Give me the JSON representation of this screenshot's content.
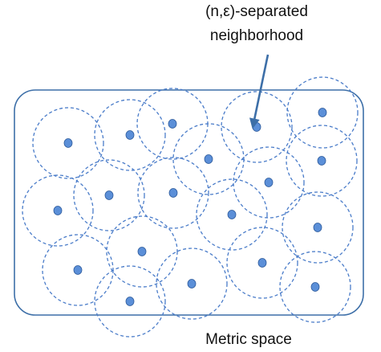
{
  "annotation": {
    "line1": "(n,ε)-separated",
    "line2": "neighborhood"
  },
  "space_label": "Metric space",
  "colors": {
    "region_stroke": "#3d6fa8",
    "circle_stroke": "#4a7cc9",
    "point_fill": "#5b8fd8",
    "point_stroke": "#2f5c9c",
    "arrow": "#3d6fa8",
    "text": "#111111"
  },
  "point_count": 20
}
